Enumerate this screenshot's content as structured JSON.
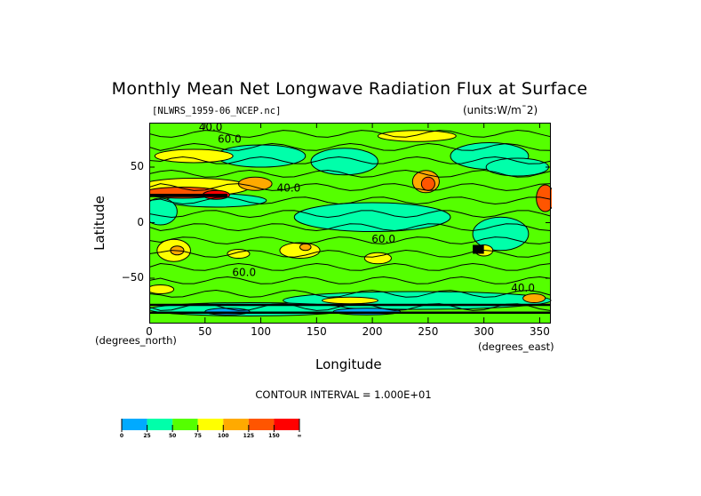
{
  "chart_data": {
    "type": "heatmap",
    "title": "Monthly Mean Net Longwave Radiation Flux at Surface",
    "subtitle_left": "[NLWRS_1959-06_NCEP.nc]",
    "subtitle_right": "(units:W/m¯2)",
    "xlabel": "Longitude",
    "ylabel": "Latitude",
    "x_unit": "(degrees_east)",
    "y_unit": "(degrees_north)",
    "xlim": [
      0,
      360
    ],
    "ylim": [
      -90,
      90
    ],
    "x_ticks": [
      "0",
      "50",
      "100",
      "150",
      "200",
      "250",
      "300",
      "350"
    ],
    "x_tick_values": [
      0,
      50,
      100,
      150,
      200,
      250,
      300,
      350
    ],
    "y_ticks": [
      "50",
      "0",
      "−50"
    ],
    "y_tick_values": [
      50,
      0,
      -50
    ],
    "contour_interval_text": "CONTOUR INTERVAL =  1.000E+01",
    "contour_interval": 10,
    "contour_labels": [
      {
        "text": "40.0",
        "lon": 55,
        "lat": 83
      },
      {
        "text": "60.0",
        "lon": 72,
        "lat": 72
      },
      {
        "text": "40.0",
        "lon": 125,
        "lat": 28
      },
      {
        "text": "60.0",
        "lon": 85,
        "lat": -48
      },
      {
        "text": "60.0",
        "lon": 210,
        "lat": -18
      },
      {
        "text": "40.0",
        "lon": 335,
        "lat": -62
      }
    ],
    "colorbar": {
      "levels": [
        "0",
        "25",
        "50",
        "75",
        "100",
        "125",
        "150",
        "∞"
      ],
      "colors": [
        "#00aaff",
        "#00ffaa",
        "#55ff00",
        "#ffff00",
        "#ffaa00",
        "#ff5500",
        "#ff0000"
      ]
    },
    "regions": [
      {
        "name": "background",
        "value_range": [
          50,
          75
        ],
        "color": "#55ff00"
      },
      {
        "name": "tropical-pacific-band",
        "lon": [
          140,
          270
        ],
        "lat": [
          -10,
          20
        ],
        "value_range": [
          25,
          50
        ]
      },
      {
        "name": "sahara-arabia-max",
        "lon": [
          0,
          80
        ],
        "lat": [
          15,
          35
        ],
        "value_range": [
          125,
          175
        ]
      },
      {
        "name": "north-america-sw-max",
        "lon": [
          240,
          255
        ],
        "lat": [
          25,
          45
        ],
        "value_range": [
          100,
          150
        ]
      },
      {
        "name": "mexico-max",
        "lon": [
          355,
          360
        ],
        "lat": [
          10,
          30
        ],
        "value_range": [
          125,
          175
        ]
      },
      {
        "name": "southern-africa-max",
        "lon": [
          10,
          35
        ],
        "lat": [
          -35,
          -15
        ],
        "value_range": [
          75,
          125
        ]
      },
      {
        "name": "australia-max",
        "lon": [
          120,
          150
        ],
        "lat": [
          -35,
          -20
        ],
        "value_range": [
          75,
          125
        ]
      },
      {
        "name": "antarctic-band",
        "lon": [
          0,
          360
        ],
        "lat": [
          -90,
          -65
        ],
        "value_range": [
          0,
          75
        ]
      }
    ]
  }
}
